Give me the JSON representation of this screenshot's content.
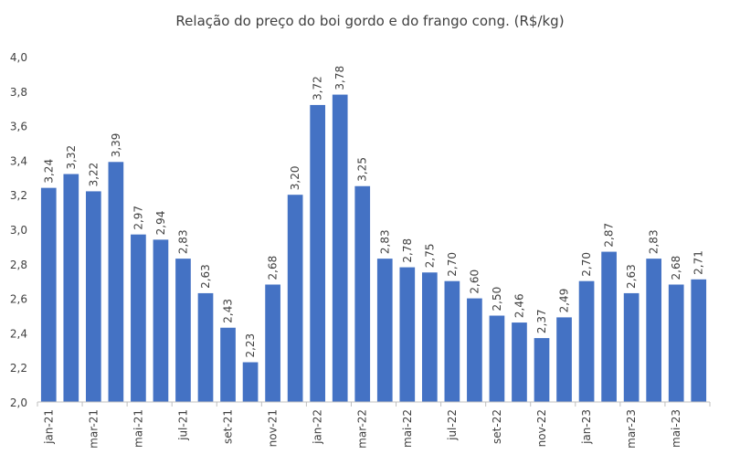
{
  "chart_data": {
    "type": "bar",
    "title": "Relação do preço do boi gordo e do frango cong. (R$/kg)",
    "categories": [
      "jan-21",
      "fev-21",
      "mar-21",
      "abr-21",
      "mai-21",
      "jun-21",
      "jul-21",
      "ago-21",
      "set-21",
      "out-21",
      "nov-21",
      "dez-21",
      "jan-22",
      "fev-22",
      "mar-22",
      "abr-22",
      "mai-22",
      "jun-22",
      "jul-22",
      "ago-22",
      "set-22",
      "out-22",
      "nov-22",
      "dez-22",
      "jan-23",
      "fev-23",
      "mar-23",
      "abr-23",
      "mai-23",
      "jun-23"
    ],
    "tick_labels": [
      "jan-21",
      "mar-21",
      "mai-21",
      "jul-21",
      "set-21",
      "nov-21",
      "jan-22",
      "mar-22",
      "mai-22",
      "jul-22",
      "set-22",
      "nov-22",
      "jan-23",
      "mar-23",
      "mai-23"
    ],
    "values": [
      3.24,
      3.32,
      3.22,
      3.39,
      2.97,
      2.94,
      2.83,
      2.63,
      2.43,
      2.23,
      2.68,
      3.2,
      3.72,
      3.78,
      3.25,
      2.83,
      2.78,
      2.75,
      2.7,
      2.6,
      2.5,
      2.46,
      2.37,
      2.49,
      2.7,
      2.87,
      2.63,
      2.83,
      2.68,
      2.71
    ],
    "data_labels": [
      "3,24",
      "3,32",
      "3,22",
      "3,39",
      "2,97",
      "2,94",
      "2,83",
      "2,63",
      "2,43",
      "2,23",
      "2,68",
      "3,20",
      "3,72",
      "3,78",
      "3,25",
      "2,83",
      "2,78",
      "2,75",
      "2,70",
      "2,60",
      "2,50",
      "2,46",
      "2,37",
      "2,49",
      "2,70",
      "2,87",
      "2,63",
      "2,83",
      "2,68",
      "2,71"
    ],
    "y_ticks": [
      "2,0",
      "2,2",
      "2,4",
      "2,6",
      "2,8",
      "3,0",
      "3,2",
      "3,4",
      "3,6",
      "3,8",
      "4,0"
    ],
    "ylim": [
      2.0,
      4.0
    ],
    "xlabel": "",
    "ylabel": "",
    "grid": false,
    "bar_color": "#4472C4"
  }
}
